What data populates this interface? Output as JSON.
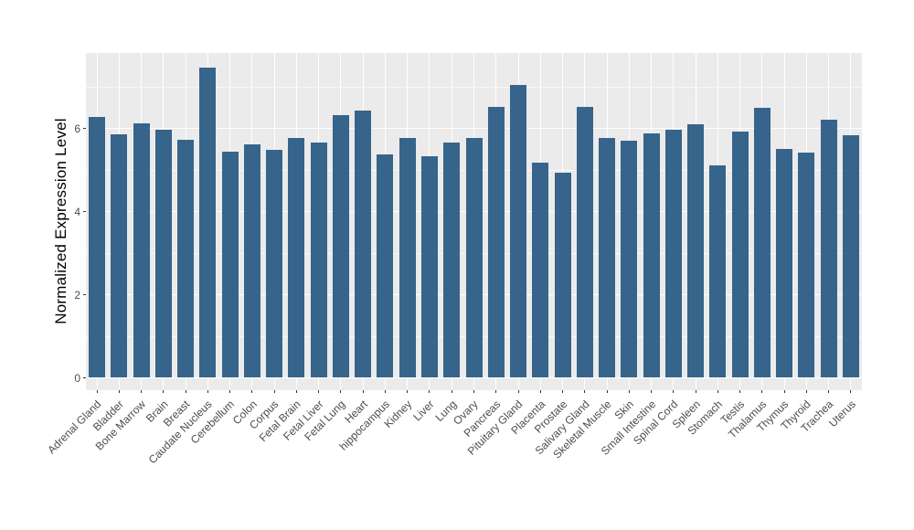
{
  "chart_data": {
    "type": "bar",
    "title": "",
    "xlabel": "",
    "ylabel": "Normalized Expression Level",
    "categories": [
      "Adrenal Gland",
      "Bladder",
      "Bone Marrow",
      "Brain",
      "Breast",
      "Caudate Nucleus",
      "Cerebellum",
      "Colon",
      "Corpus",
      "Fetal Brain",
      "Fetal Liver",
      "Fetal Lung",
      "Heart",
      "hippocampus",
      "Kidney",
      "Liver",
      "Lung",
      "Ovary",
      "Pancreas",
      "Pituitary Gland",
      "Placenta",
      "Prostate",
      "Salivary Gland",
      "Skeletal Muscle",
      "Skin",
      "Small Intestine",
      "Spinal Cord",
      "Spleen",
      "Stomach",
      "Testis",
      "Thalamus",
      "Thymus",
      "Thyroid",
      "Trachea",
      "Uterus"
    ],
    "values": [
      6.28,
      5.85,
      6.12,
      5.97,
      5.73,
      7.47,
      5.44,
      5.61,
      5.48,
      5.77,
      5.66,
      6.31,
      6.42,
      5.37,
      5.78,
      5.34,
      5.66,
      5.76,
      6.52,
      7.05,
      5.18,
      4.94,
      6.51,
      5.78,
      5.71,
      5.88,
      5.96,
      6.09,
      5.11,
      5.92,
      6.49,
      5.51,
      5.41,
      6.2,
      5.83
    ],
    "y_ticks": [
      0,
      2,
      4,
      6
    ],
    "y_minor_ticks": [
      1,
      3,
      5,
      7
    ],
    "ylim": [
      0,
      7.81
    ],
    "x_tick_angle_deg": 45,
    "legend": "none",
    "grid": "on",
    "colors": {
      "bar": "#36648B",
      "panel_background": "#EBEBEB",
      "major_grid": "#FFFFFF",
      "minor_grid": "rgba(255,255,255,0.65)",
      "tick_label": "#4D4D4D",
      "axis_title": "#000000",
      "tick_mark": "#333333",
      "figure_background": "#FFFFFF"
    }
  }
}
